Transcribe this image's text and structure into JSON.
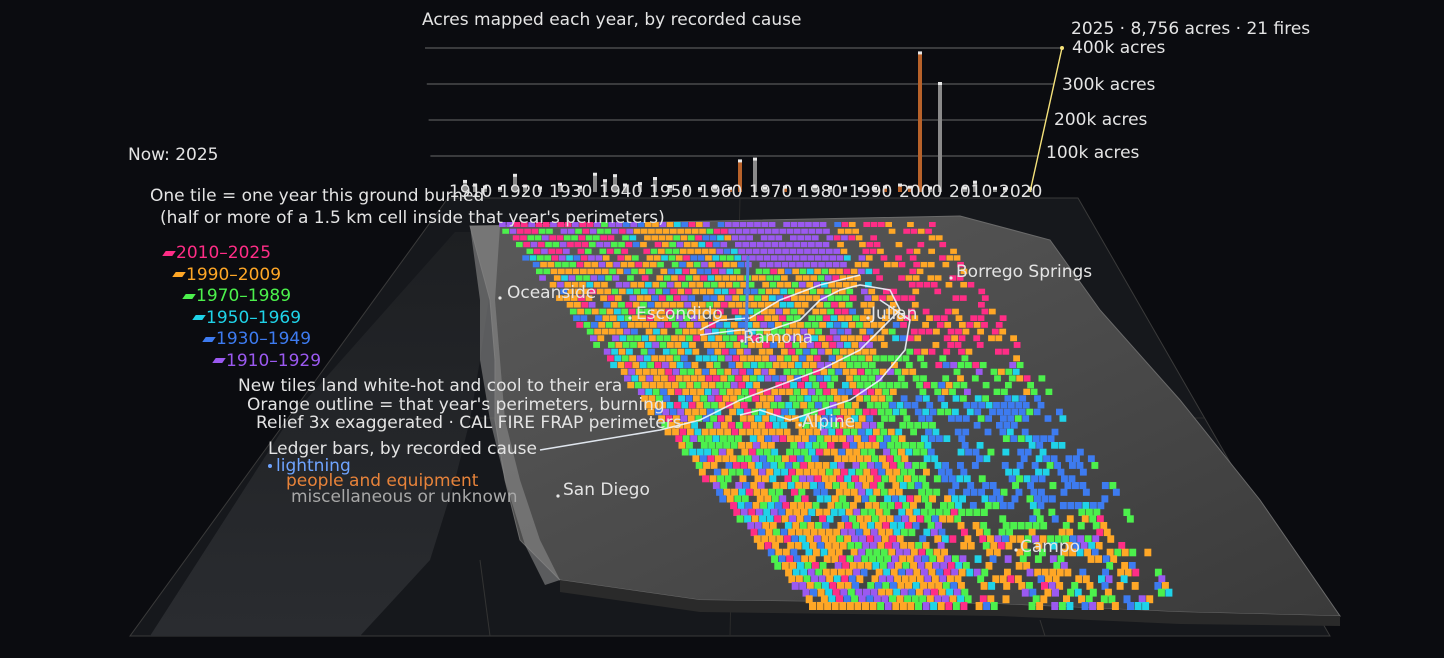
{
  "ledger": {
    "title": "Acres mapped each year, by recorded cause",
    "current_readout": "2025 · 8,756 acres · 21 fires",
    "axis_labels": [
      "400k acres",
      "300k acres",
      "200k acres",
      "100k acres"
    ],
    "decade_labels": [
      "1910",
      "1920",
      "1930",
      "1940",
      "1950",
      "1960",
      "1970",
      "1980",
      "1990",
      "2000",
      "2010",
      "2020"
    ]
  },
  "status": {
    "now": "Now: 2025"
  },
  "explain": {
    "line1": "One tile = one year this ground burned",
    "line2": "(half or more of a 1.5 km cell inside that year's perimeters)"
  },
  "era_legend": [
    {
      "label": "2010–2025",
      "color": "#ff2d86"
    },
    {
      "label": "1990–2009",
      "color": "#ffa726"
    },
    {
      "label": "1970–1989",
      "color": "#4cf04c"
    },
    {
      "label": "1950–1969",
      "color": "#1fd3e8"
    },
    {
      "label": "1930–1949",
      "color": "#3d7bf0"
    },
    {
      "label": "1910–1929",
      "color": "#9b59f0"
    }
  ],
  "notes": {
    "n1": "New tiles land white-hot and cool to their era",
    "n2": "Orange outline = that year's perimeters, burning",
    "n3": "Relief 3x exaggerated · CAL FIRE FRAP perimeters"
  },
  "cause_legend": {
    "title": "Ledger bars, by recorded cause",
    "items": [
      {
        "label": "lightning",
        "color": "#6fa4ff"
      },
      {
        "label": "people and equipment",
        "color": "#e8833a"
      },
      {
        "label": "miscellaneous or unknown",
        "color": "#a8a8a8"
      }
    ]
  },
  "places": {
    "oceanside": "Oceanside",
    "escondido": "Escondido",
    "ramona": "Ramona",
    "julian": "Julian",
    "borrego": "Borrego Springs",
    "alpine": "Alpine",
    "san_diego": "San Diego",
    "campo": "Campo"
  },
  "chart_data": {
    "type": "bar",
    "title": "Acres mapped each year, by recorded cause",
    "x_range": [
      1910,
      2025
    ],
    "ylim": [
      0,
      400000
    ],
    "y_ticks": [
      100000,
      200000,
      300000,
      400000
    ],
    "bars": [
      {
        "year": 1912,
        "acres": 28000,
        "cause": "misc"
      },
      {
        "year": 1914,
        "acres": 18000,
        "cause": "misc"
      },
      {
        "year": 1916,
        "acres": 12000,
        "cause": "misc"
      },
      {
        "year": 1919,
        "acres": 9000,
        "cause": "misc"
      },
      {
        "year": 1922,
        "acres": 45000,
        "cause": "misc"
      },
      {
        "year": 1924,
        "acres": 15000,
        "cause": "misc"
      },
      {
        "year": 1927,
        "acres": 10000,
        "cause": "misc"
      },
      {
        "year": 1931,
        "acres": 20000,
        "cause": "misc"
      },
      {
        "year": 1935,
        "acres": 12000,
        "cause": "misc"
      },
      {
        "year": 1938,
        "acres": 48000,
        "cause": "misc"
      },
      {
        "year": 1940,
        "acres": 30000,
        "cause": "misc"
      },
      {
        "year": 1942,
        "acres": 44000,
        "cause": "misc"
      },
      {
        "year": 1944,
        "acres": 18000,
        "cause": "misc"
      },
      {
        "year": 1947,
        "acres": 22000,
        "cause": "misc"
      },
      {
        "year": 1950,
        "acres": 36000,
        "cause": "misc"
      },
      {
        "year": 1953,
        "acres": 14000,
        "cause": "misc"
      },
      {
        "year": 1956,
        "acres": 10000,
        "cause": "misc"
      },
      {
        "year": 1959,
        "acres": 8000,
        "cause": "misc"
      },
      {
        "year": 1962,
        "acres": 12000,
        "cause": "misc"
      },
      {
        "year": 1965,
        "acres": 9000,
        "cause": "people"
      },
      {
        "year": 1967,
        "acres": 85000,
        "cause": "people"
      },
      {
        "year": 1970,
        "acres": 90000,
        "cause": "misc"
      },
      {
        "year": 1972,
        "acres": 10000,
        "cause": "misc"
      },
      {
        "year": 1976,
        "acres": 12000,
        "cause": "people"
      },
      {
        "year": 1979,
        "acres": 9000,
        "cause": "misc"
      },
      {
        "year": 1982,
        "acres": 14000,
        "cause": "misc"
      },
      {
        "year": 1985,
        "acres": 11000,
        "cause": "misc"
      },
      {
        "year": 1988,
        "acres": 10000,
        "cause": "misc"
      },
      {
        "year": 1991,
        "acres": 8000,
        "cause": "misc"
      },
      {
        "year": 1994,
        "acres": 9000,
        "cause": "misc"
      },
      {
        "year": 1996,
        "acres": 12000,
        "cause": "people"
      },
      {
        "year": 1999,
        "acres": 18000,
        "cause": "people"
      },
      {
        "year": 2001,
        "acres": 12000,
        "cause": "people"
      },
      {
        "year": 2003,
        "acres": 385000,
        "cause": "people"
      },
      {
        "year": 2005,
        "acres": 10000,
        "cause": "misc"
      },
      {
        "year": 2007,
        "acres": 300000,
        "cause": "misc"
      },
      {
        "year": 2012,
        "acres": 10000,
        "cause": "misc"
      },
      {
        "year": 2014,
        "acres": 26000,
        "cause": "misc"
      },
      {
        "year": 2018,
        "acres": 9000,
        "cause": "misc"
      },
      {
        "year": 2020,
        "acres": 8000,
        "cause": "misc"
      },
      {
        "year": 2025,
        "acres": 8756,
        "cause": "misc"
      }
    ]
  }
}
